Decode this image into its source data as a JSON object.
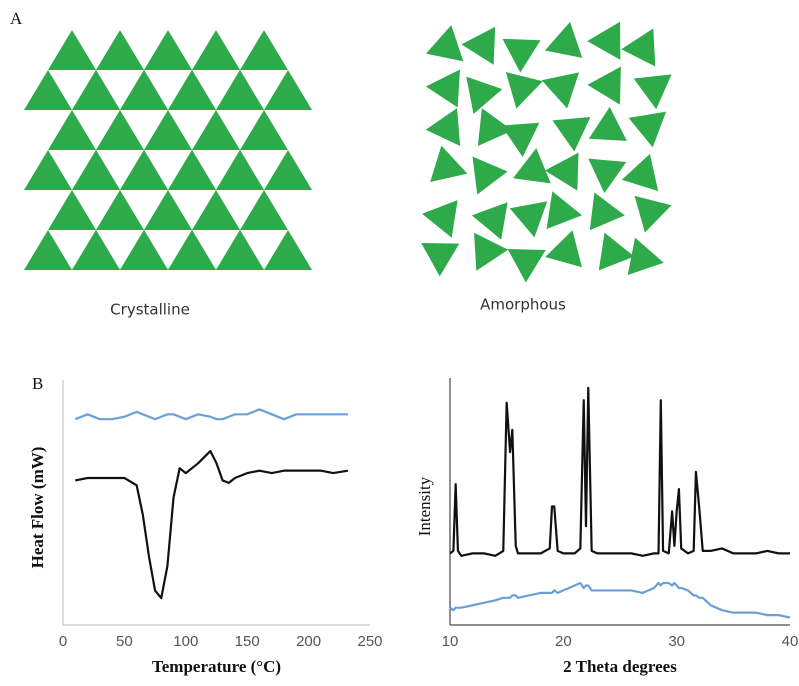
{
  "panel_labels": [
    "A",
    "B"
  ],
  "diagram": {
    "labels": [
      "Crystalline",
      "Amorphous"
    ]
  },
  "chart_data": [
    {
      "type": "line",
      "xlabel": "Temperature (°C)",
      "ylabel": "Heat Flow (mW)",
      "xlim": [
        0,
        250
      ],
      "xticks": [
        0,
        50,
        100,
        150,
        200,
        250
      ],
      "ylim": [
        0,
        100
      ],
      "x": [
        10,
        20,
        30,
        40,
        50,
        60,
        65,
        70,
        75,
        80,
        85,
        90,
        95,
        100,
        110,
        120,
        125,
        130,
        135,
        140,
        150,
        160,
        170,
        180,
        190,
        200,
        210,
        220,
        232
      ],
      "series": [
        {
          "color": "#6a9fd8",
          "values": [
            84,
            86,
            84,
            84,
            85,
            87,
            86,
            85,
            84,
            85,
            86,
            86,
            85,
            84,
            86,
            85,
            84,
            84,
            85,
            86,
            86,
            88,
            86,
            84,
            86,
            86,
            86,
            86,
            86
          ]
        },
        {
          "color": "#111111",
          "values": [
            59,
            60,
            60,
            60,
            60,
            57,
            45,
            28,
            14,
            11,
            24,
            52,
            64,
            62,
            66,
            71,
            66,
            59,
            58,
            60,
            62,
            63,
            62,
            63,
            63,
            63,
            63,
            62,
            63
          ]
        }
      ]
    },
    {
      "type": "line",
      "xlabel": "2 Theta degrees",
      "ylabel": "Intensity",
      "xlim": [
        10,
        40
      ],
      "xticks": [
        10,
        20,
        30,
        40
      ],
      "ylim": [
        0,
        100
      ],
      "x": [
        10,
        10.3,
        10.5,
        10.7,
        11,
        12,
        13,
        14,
        14.7,
        15,
        15.3,
        15.5,
        15.8,
        16,
        17,
        18,
        18.8,
        19,
        19.2,
        19.5,
        20,
        21,
        21.5,
        21.8,
        22,
        22.2,
        22.5,
        23,
        24,
        25,
        26,
        27,
        28,
        28.4,
        28.6,
        28.8,
        29.3,
        29.6,
        29.8,
        30,
        30.2,
        30.4,
        31,
        31.5,
        31.7,
        32,
        32.3,
        33,
        34,
        35,
        36,
        37,
        38,
        39,
        40
      ],
      "series": [
        {
          "color": "#111111",
          "values": [
            29,
            30,
            57,
            30,
            28,
            29,
            29,
            28,
            30,
            90,
            70,
            79,
            32,
            29,
            29,
            29,
            31,
            48,
            48,
            30,
            29,
            29,
            31,
            91,
            40,
            96,
            30,
            29,
            29,
            29,
            29,
            28,
            29,
            29,
            91,
            30,
            29,
            46,
            32,
            46,
            55,
            31,
            29,
            30,
            62,
            47,
            30,
            30,
            31,
            29,
            29,
            29,
            30,
            29,
            29
          ]
        },
        {
          "color": "#6a9fd8",
          "values": [
            7,
            6,
            7,
            7,
            7,
            8,
            9,
            10,
            11,
            11,
            11,
            12,
            12,
            11,
            12,
            13,
            13,
            13,
            14,
            13,
            14,
            16,
            17,
            15,
            16,
            16,
            14,
            14,
            14,
            14,
            14,
            13,
            15,
            17,
            16,
            17,
            17,
            16,
            17,
            16,
            15,
            15,
            14,
            12,
            12,
            11,
            11,
            8,
            6,
            5,
            5,
            5,
            4,
            4,
            3
          ]
        }
      ]
    }
  ]
}
